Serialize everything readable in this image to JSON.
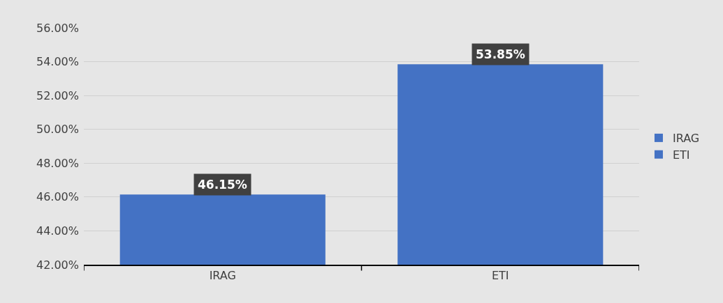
{
  "chart_data": {
    "type": "bar",
    "categories": [
      "IRAG",
      "ETI"
    ],
    "series": [
      {
        "name": "IRAG",
        "color": "#4472c4",
        "values": [
          46.15,
          null
        ],
        "value_labels": [
          "46.15%",
          null
        ]
      },
      {
        "name": "ETI",
        "color": "#4472c4",
        "values": [
          null,
          53.85
        ],
        "value_labels": [
          null,
          "53.85%"
        ]
      }
    ],
    "ylim": [
      42,
      56
    ],
    "yticks": [
      {
        "value": 42,
        "label": "42.00%"
      },
      {
        "value": 44,
        "label": "44.00%"
      },
      {
        "value": 46,
        "label": "46.00%"
      },
      {
        "value": 48,
        "label": "48.00%"
      },
      {
        "value": 50,
        "label": "50.00%"
      },
      {
        "value": 52,
        "label": "52.00%"
      },
      {
        "value": 54,
        "label": "54.00%"
      },
      {
        "value": 56,
        "label": "56.00%"
      }
    ],
    "grid": "y",
    "legend": "right"
  }
}
